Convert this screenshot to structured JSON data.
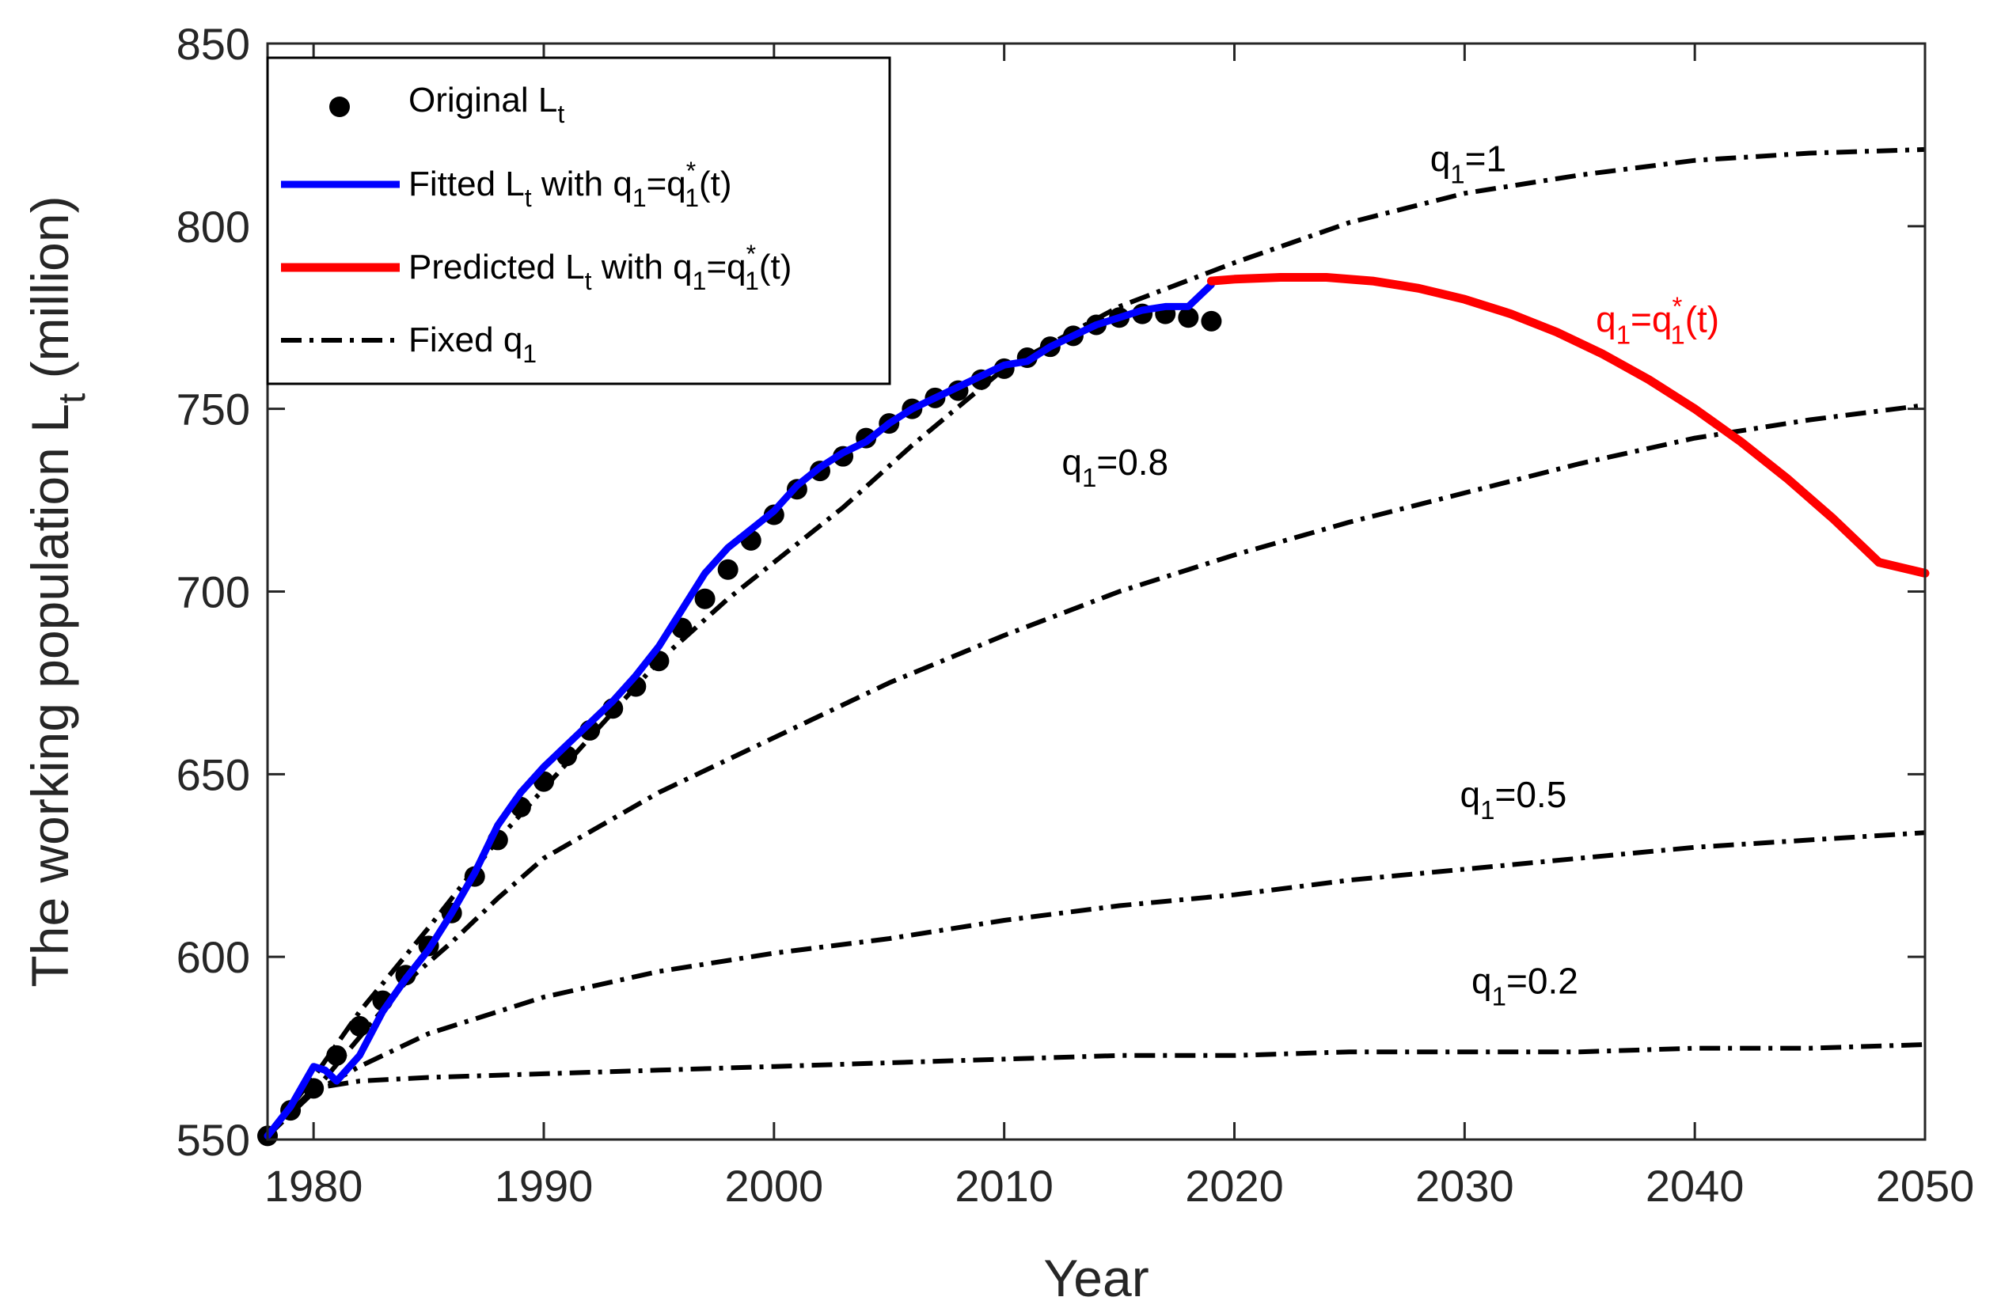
{
  "chart_data": {
    "type": "line",
    "title": "",
    "xlabel": "Year",
    "ylabel": {
      "main": "The working population L",
      "sub": "t",
      "unit": " (million)"
    },
    "xlim": [
      1978,
      2050
    ],
    "ylim": [
      550,
      850
    ],
    "xticks": [
      1980,
      1990,
      2000,
      2010,
      2020,
      2030,
      2040,
      2050
    ],
    "yticks": [
      550,
      600,
      650,
      700,
      750,
      800,
      850
    ],
    "grid": false,
    "legend_position": "top-left",
    "colors": {
      "original": "#000000",
      "fitted": "#0000ff",
      "predicted": "#ff0000",
      "fixed": "#000000",
      "axis": "#262626"
    },
    "legend": [
      {
        "key": "original",
        "parts": [
          [
            "n",
            "Original L"
          ],
          [
            "sub",
            "t"
          ]
        ]
      },
      {
        "key": "fitted",
        "parts": [
          [
            "n",
            "Fitted L"
          ],
          [
            "sub",
            "t"
          ],
          [
            "n",
            " with q"
          ],
          [
            "sub",
            "1"
          ],
          [
            "n",
            "=q"
          ],
          [
            "supsub",
            "*",
            "1"
          ],
          [
            "n",
            "(t)"
          ]
        ]
      },
      {
        "key": "predicted",
        "parts": [
          [
            "n",
            "Predicted L"
          ],
          [
            "sub",
            "t"
          ],
          [
            "n",
            " with q"
          ],
          [
            "sub",
            "1"
          ],
          [
            "n",
            "=q"
          ],
          [
            "supsub",
            "*",
            "1"
          ],
          [
            "n",
            "(t)"
          ]
        ]
      },
      {
        "key": "fixed",
        "parts": [
          [
            "n",
            "Fixed q"
          ],
          [
            "sub",
            "1"
          ]
        ]
      }
    ],
    "annotations": [
      {
        "key": "q1",
        "color": "#000000",
        "x": 2028.5,
        "y": 815,
        "parts": [
          [
            "n",
            "q"
          ],
          [
            "sub",
            "1"
          ],
          [
            "n",
            "=1"
          ]
        ]
      },
      {
        "key": "q08",
        "color": "#000000",
        "x": 2012.5,
        "y": 732,
        "parts": [
          [
            "n",
            "q"
          ],
          [
            "sub",
            "1"
          ],
          [
            "n",
            "=0.8"
          ]
        ]
      },
      {
        "key": "q05",
        "color": "#000000",
        "x": 2029.8,
        "y": 641,
        "parts": [
          [
            "n",
            "q"
          ],
          [
            "sub",
            "1"
          ],
          [
            "n",
            "=0.5"
          ]
        ]
      },
      {
        "key": "q02",
        "color": "#000000",
        "x": 2030.3,
        "y": 590,
        "parts": [
          [
            "n",
            "q"
          ],
          [
            "sub",
            "1"
          ],
          [
            "n",
            "=0.2"
          ]
        ]
      },
      {
        "key": "qstar",
        "color": "#ff0000",
        "x": 2035.7,
        "y": 771,
        "parts": [
          [
            "n",
            "q"
          ],
          [
            "sub",
            "1"
          ],
          [
            "n",
            "=q"
          ],
          [
            "supsub",
            "*",
            "1"
          ],
          [
            "n",
            "(t)"
          ]
        ]
      }
    ],
    "series": [
      {
        "name": "Original L_t",
        "style": "markers",
        "x": [
          1978,
          1979,
          1980,
          1981,
          1982,
          1983,
          1984,
          1985,
          1986,
          1987,
          1988,
          1989,
          1990,
          1991,
          1992,
          1993,
          1994,
          1995,
          1996,
          1997,
          1998,
          1999,
          2000,
          2001,
          2002,
          2003,
          2004,
          2005,
          2006,
          2007,
          2008,
          2009,
          2010,
          2011,
          2012,
          2013,
          2014,
          2015,
          2016,
          2017,
          2018,
          2019
        ],
        "values": [
          551,
          558,
          564,
          573,
          581,
          588,
          595,
          603,
          612,
          622,
          632,
          641,
          648,
          655,
          662,
          668,
          674,
          681,
          690,
          698,
          706,
          714,
          721,
          728,
          733,
          737,
          742,
          746,
          750,
          753,
          755,
          758,
          761,
          764,
          767,
          770,
          773,
          775,
          776,
          776,
          775,
          774
        ]
      },
      {
        "name": "Fitted L_t with q1=q1*(t)",
        "style": "solid-blue",
        "x": [
          1978,
          1979,
          1980,
          1980.5,
          1981,
          1982,
          1983,
          1984,
          1985,
          1986,
          1987,
          1988,
          1989,
          1990,
          1991,
          1992,
          1993,
          1994,
          1995,
          1996,
          1997,
          1998,
          1999,
          2000,
          2001,
          2002,
          2003,
          2004,
          2005,
          2006,
          2007,
          2008,
          2009,
          2010,
          2011,
          2012,
          2013,
          2014,
          2015,
          2016,
          2017,
          2018,
          2019
        ],
        "values": [
          551,
          559,
          570,
          569,
          566,
          573,
          585,
          594,
          602,
          612,
          623,
          636,
          645,
          652,
          658,
          664,
          670,
          677,
          685,
          695,
          705,
          712,
          717,
          722,
          729,
          734,
          738,
          741,
          746,
          750,
          753,
          756,
          759,
          762,
          763,
          767,
          770,
          773,
          775,
          777,
          778,
          778,
          784
        ]
      },
      {
        "name": "Predicted L_t with q1=q1*(t)",
        "style": "solid-red",
        "x": [
          2019,
          2020,
          2022,
          2024,
          2026,
          2028,
          2030,
          2032,
          2034,
          2036,
          2038,
          2040,
          2042,
          2044,
          2046,
          2048,
          2050
        ],
        "values": [
          785,
          785.5,
          786,
          786,
          785,
          783,
          780,
          776,
          771,
          765,
          758,
          750,
          741,
          731,
          720,
          708,
          705
        ]
      },
      {
        "name": "Fixed q1 = 1",
        "style": "dashdot",
        "x": [
          1978,
          1980,
          1982,
          1985,
          1988,
          1990,
          1992,
          1995,
          1998,
          2000,
          2003,
          2006,
          2010,
          2015,
          2020,
          2025,
          2030,
          2035,
          2040,
          2045,
          2050
        ],
        "values": [
          551,
          567,
          585,
          608,
          632,
          646,
          660,
          681,
          698,
          708,
          723,
          740,
          761,
          778,
          790,
          801,
          809,
          814,
          818,
          820,
          821
        ]
      },
      {
        "name": "Fixed q1 = 0.8",
        "style": "dashdot",
        "x": [
          1978,
          1980,
          1982,
          1984,
          1986,
          1988,
          1990,
          1995,
          2000,
          2005,
          2010,
          2015,
          2020,
          2025,
          2030,
          2035,
          2040,
          2045,
          2050
        ],
        "values": [
          551,
          563,
          578,
          593,
          604,
          616,
          627,
          645,
          660,
          675,
          688,
          700,
          710,
          719,
          727,
          735,
          742,
          747,
          751
        ]
      },
      {
        "name": "Fixed q1 = 0.5",
        "style": "dashdot",
        "x": [
          1978,
          1980,
          1982,
          1985,
          1990,
          1995,
          2000,
          2005,
          2010,
          2015,
          2020,
          2025,
          2030,
          2035,
          2040,
          2045,
          2050
        ],
        "values": [
          551,
          563,
          570,
          579,
          589,
          596,
          601,
          605,
          610,
          614,
          617,
          621,
          624,
          627,
          630,
          632,
          634
        ]
      },
      {
        "name": "Fixed q1 = 0.2",
        "style": "dashdot",
        "x": [
          1978,
          1980,
          1982,
          1985,
          1990,
          1995,
          2000,
          2005,
          2010,
          2015,
          2020,
          2025,
          2030,
          2035,
          2040,
          2045,
          2050
        ],
        "values": [
          551,
          564,
          566,
          567,
          568,
          569,
          570,
          571,
          572,
          573,
          573,
          574,
          574,
          574,
          575,
          575,
          576
        ]
      }
    ]
  }
}
